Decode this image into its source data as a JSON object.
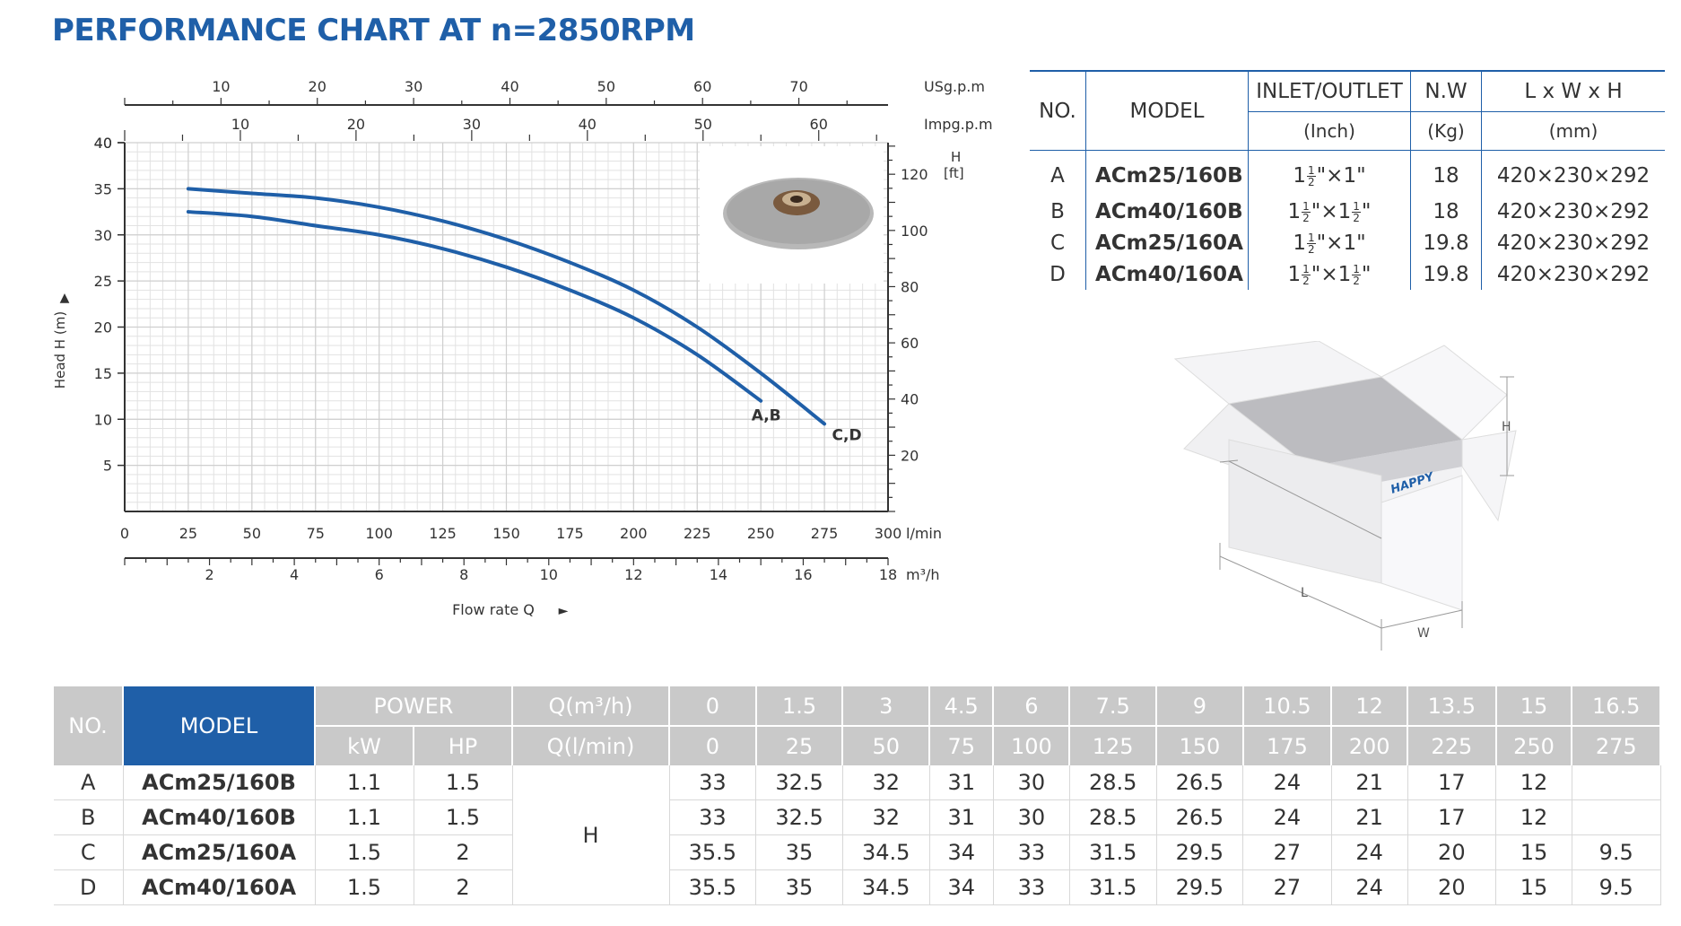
{
  "title": "PERFORMANCE CHART AT n=2850RPM",
  "chart_data": {
    "type": "line",
    "title": "PERFORMANCE CHART AT n=2850RPM",
    "xlabel": "Flow rate Q",
    "ylabel": "Head H (m)",
    "xlim": [
      0,
      300
    ],
    "ylim": [
      0,
      40
    ],
    "x_ticks": [
      0,
      25,
      50,
      75,
      100,
      125,
      150,
      175,
      200,
      225,
      250,
      275,
      300
    ],
    "x_unit": "l/min",
    "y_ticks": [
      5,
      10,
      15,
      20,
      25,
      30,
      35,
      40
    ],
    "ft_axis": {
      "label": "H",
      "unit": "[ft]",
      "ticks": [
        20,
        40,
        60,
        80,
        100,
        120
      ]
    },
    "usgpm_axis": {
      "unit": "USg.p.m",
      "ticks": [
        10,
        20,
        30,
        40,
        50,
        60,
        70
      ]
    },
    "impgpm_axis": {
      "unit": "Impg.p.m",
      "ticks": [
        10,
        20,
        30,
        40,
        50,
        60
      ]
    },
    "m3h_axis": {
      "unit": "m³/h",
      "ticks": [
        2,
        4,
        6,
        8,
        10,
        12,
        14,
        16,
        18
      ]
    },
    "grid": true,
    "series": [
      {
        "name": "A,B",
        "x": [
          25,
          50,
          75,
          100,
          125,
          150,
          175,
          200,
          225,
          250
        ],
        "values": [
          32.5,
          32,
          31,
          30,
          28.5,
          26.5,
          24,
          21,
          17,
          12
        ]
      },
      {
        "name": "C,D",
        "x": [
          25,
          50,
          75,
          100,
          125,
          150,
          175,
          200,
          225,
          250,
          275
        ],
        "values": [
          35,
          34.5,
          34,
          33,
          31.5,
          29.5,
          27,
          24,
          20,
          15,
          9.5
        ]
      }
    ],
    "arrow_up": "▲",
    "arrow_right": "►"
  },
  "spec_table": {
    "headers": {
      "no": "NO.",
      "model": "MODEL",
      "inlet": "INLET/OUTLET",
      "inlet_unit": "(Inch)",
      "nw": "N.W",
      "nw_unit": "(Kg)",
      "dim": "L x W x H",
      "dim_unit": "(mm)"
    },
    "rows": [
      {
        "no": "A",
        "model": "ACm25/160B",
        "inlet": "1½\"×1\"",
        "nw": "18",
        "dim": "420×230×292"
      },
      {
        "no": "B",
        "model": "ACm40/160B",
        "inlet": "1½\"×1½\"",
        "nw": "18",
        "dim": "420×230×292"
      },
      {
        "no": "C",
        "model": "ACm25/160A",
        "inlet": "1½\"×1\"",
        "nw": "19.8",
        "dim": "420×230×292"
      },
      {
        "no": "D",
        "model": "ACm40/160A",
        "inlet": "1½\"×1½\"",
        "nw": "19.8",
        "dim": "420×230×292"
      }
    ]
  },
  "box": {
    "brand": "HAPPY",
    "h_label": "H",
    "l_label": "L",
    "w_label": "W"
  },
  "perf_table": {
    "no": "NO.",
    "model": "MODEL",
    "power": "POWER",
    "kw": "kW",
    "hp": "HP",
    "q1": "Q(m³/h)",
    "q2": "Q(l/min)",
    "h": "H",
    "q_m3h": [
      "0",
      "1.5",
      "3",
      "4.5",
      "6",
      "7.5",
      "9",
      "10.5",
      "12",
      "13.5",
      "15",
      "16.5"
    ],
    "q_lmin": [
      "0",
      "25",
      "50",
      "75",
      "100",
      "125",
      "150",
      "175",
      "200",
      "225",
      "250",
      "275"
    ],
    "rows": [
      {
        "no": "A",
        "model": "ACm25/160B",
        "kw": "1.1",
        "hp": "1.5",
        "h": [
          "33",
          "32.5",
          "32",
          "31",
          "30",
          "28.5",
          "26.5",
          "24",
          "21",
          "17",
          "12",
          ""
        ]
      },
      {
        "no": "B",
        "model": "ACm40/160B",
        "kw": "1.1",
        "hp": "1.5",
        "h": [
          "33",
          "32.5",
          "32",
          "31",
          "30",
          "28.5",
          "26.5",
          "24",
          "21",
          "17",
          "12",
          ""
        ]
      },
      {
        "no": "C",
        "model": "ACm25/160A",
        "kw": "1.5",
        "hp": "2",
        "h": [
          "35.5",
          "35",
          "34.5",
          "34",
          "33",
          "31.5",
          "29.5",
          "27",
          "24",
          "20",
          "15",
          "9.5"
        ]
      },
      {
        "no": "D",
        "model": "ACm40/160A",
        "kw": "1.5",
        "hp": "2",
        "h": [
          "35.5",
          "35",
          "34.5",
          "34",
          "33",
          "31.5",
          "29.5",
          "27",
          "24",
          "20",
          "15",
          "9.5"
        ]
      }
    ]
  }
}
